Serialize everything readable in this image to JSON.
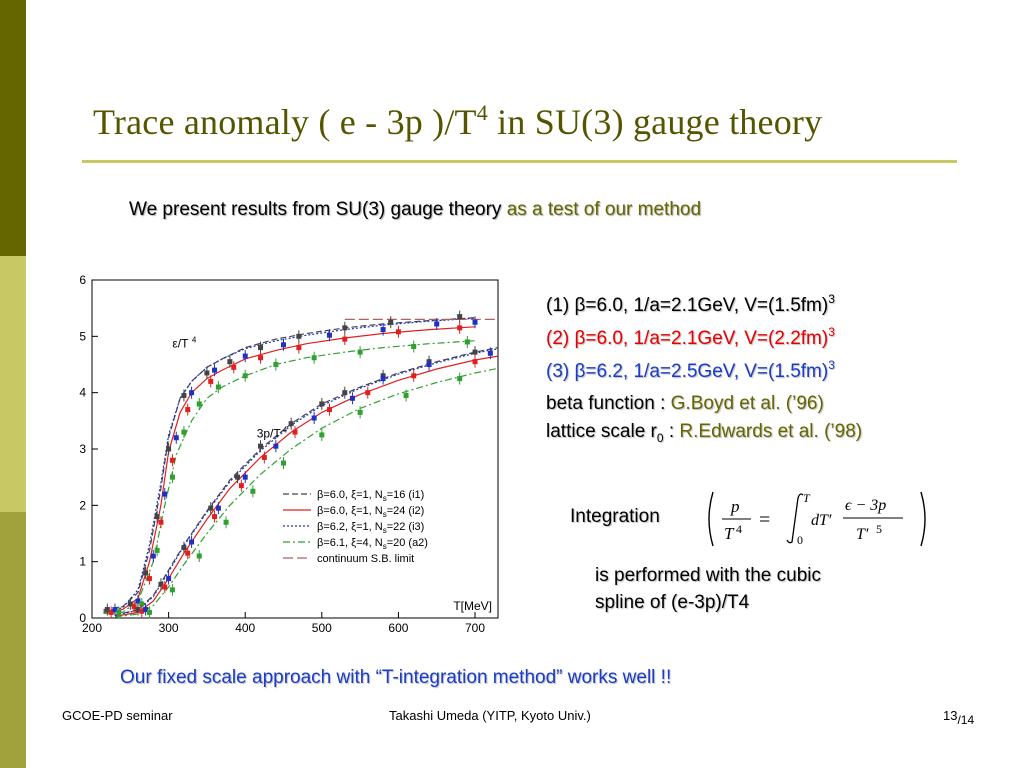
{
  "slide": {
    "title_main": "Trace anomaly ( e - 3p )/T",
    "title_sup": "4",
    "title_tail": " in SU(3) gauge theory",
    "subtitle_main": "We present results from SU(3) gauge theory ",
    "subtitle_accent": "as a test of our method",
    "params": [
      {
        "text": "(1) β=6.0, 1/a=2.1GeV, V=(1.5fm)",
        "sup": "3"
      },
      {
        "text": "(2) β=6.0, 1/a=2.1GeV, V=(2.2fm)",
        "sup": "3"
      },
      {
        "text": "(3) β=6.2, 1/a=2.5GeV, V=(1.5fm)",
        "sup": "3"
      }
    ],
    "beta_label": "beta function  : ",
    "beta_ref": "G.Boyd et al. (’96)",
    "lattice_label": "lattice scale r",
    "lattice_sub": "0",
    "lattice_colon": " : ",
    "lattice_ref": "R.Edwards et al. (’98)",
    "integration_label": "Integration",
    "integration_note_1": "is performed with the cubic",
    "integration_note_2": "spline of (e-3p)/T4",
    "conclusion": "Our fixed scale approach with “T-integration method” works well !!",
    "footer_left": "GCOE-PD seminar",
    "footer_center": "Takashi Umeda (YITP, Kyoto Univ.)",
    "page_number": "13",
    "page_total": "/14",
    "colors": {
      "olive_dark": "#666600",
      "olive_light": "#c8c865",
      "red": "#e80000",
      "blue": "#1a3cc8"
    }
  },
  "chart_data": {
    "type": "line",
    "xlabel": "T[MeV]",
    "ylabel": "",
    "xlim": [
      200,
      730
    ],
    "ylim": [
      0,
      6
    ],
    "xticks": [
      200,
      300,
      400,
      500,
      600,
      700
    ],
    "yticks": [
      0,
      1,
      2,
      3,
      4,
      5,
      6
    ],
    "grid": false,
    "legend_position": "bottom-right",
    "annotations": [
      {
        "text": "ε/T",
        "sup": "4",
        "x": 305,
        "y": 4.8
      },
      {
        "text": "3p/T",
        "sup": "4",
        "x": 415,
        "y": 3.2
      }
    ],
    "series": [
      {
        "name": "β=6.0, ξ=1, N",
        "sub": "s",
        "suffix": "=16 (i1)",
        "style": "dashed",
        "color": "#444444",
        "x": [
          215,
          240,
          260,
          275,
          290,
          300,
          315,
          330,
          350,
          370,
          400,
          440,
          480,
          530,
          580,
          640,
          700
        ],
        "y": [
          0.15,
          0.2,
          0.45,
          1.2,
          2.3,
          3.2,
          3.9,
          4.2,
          4.45,
          4.6,
          4.8,
          4.95,
          5.05,
          5.15,
          5.22,
          5.28,
          5.33
        ]
      },
      {
        "name": "β=6.0, ξ=1, N",
        "sub": "s",
        "suffix": "=24 (i2)",
        "style": "solid",
        "color": "#e02020",
        "x": [
          215,
          240,
          260,
          275,
          290,
          300,
          315,
          330,
          350,
          370,
          400,
          440,
          480,
          530,
          580,
          640,
          700
        ],
        "y": [
          0.1,
          0.15,
          0.35,
          1.0,
          2.0,
          2.95,
          3.65,
          4.0,
          4.25,
          4.4,
          4.6,
          4.75,
          4.87,
          4.97,
          5.05,
          5.12,
          5.17
        ]
      },
      {
        "name": "β=6.2, ξ=1, N",
        "sub": "s",
        "suffix": "=22 (i3)",
        "style": "dotted",
        "color": "#2030c0",
        "x": [
          215,
          240,
          260,
          275,
          290,
          300,
          315,
          330,
          350,
          370,
          400,
          440,
          480,
          530,
          580,
          640,
          700
        ],
        "y": [
          0.12,
          0.18,
          0.5,
          1.3,
          2.4,
          3.25,
          3.9,
          4.2,
          4.45,
          4.6,
          4.78,
          4.92,
          5.02,
          5.12,
          5.2,
          5.27,
          5.32
        ]
      },
      {
        "name": "β=6.1, ξ=4, N",
        "sub": "s",
        "suffix": "=20 (a2)",
        "style": "dashdot",
        "color": "#30a030",
        "x": [
          215,
          240,
          260,
          280,
          295,
          310,
          330,
          350,
          370,
          400,
          440,
          480,
          530,
          580,
          640,
          700
        ],
        "y": [
          0.08,
          0.1,
          0.3,
          1.0,
          2.0,
          2.9,
          3.5,
          3.9,
          4.1,
          4.3,
          4.5,
          4.62,
          4.72,
          4.8,
          4.87,
          4.92
        ]
      },
      {
        "name": "continuum S.B. limit",
        "sub": "",
        "suffix": "",
        "style": "longdash",
        "color": "#b06060",
        "x": [
          530,
          730
        ],
        "y": [
          5.3,
          5.3
        ]
      },
      {
        "name": "",
        "style": "dashed",
        "color": "#444444",
        "group": "3p",
        "x": [
          230,
          260,
          280,
          300,
          320,
          350,
          380,
          420,
          460,
          500,
          550,
          600,
          650,
          700,
          730
        ],
        "y": [
          0.05,
          0.15,
          0.4,
          0.85,
          1.3,
          1.9,
          2.45,
          3.0,
          3.45,
          3.8,
          4.1,
          4.35,
          4.55,
          4.72,
          4.8
        ]
      },
      {
        "name": "",
        "style": "solid",
        "color": "#e02020",
        "group": "3p",
        "x": [
          230,
          260,
          280,
          300,
          320,
          350,
          380,
          420,
          460,
          500,
          550,
          600,
          650,
          700,
          730
        ],
        "y": [
          0.03,
          0.1,
          0.3,
          0.7,
          1.15,
          1.75,
          2.3,
          2.85,
          3.3,
          3.65,
          3.97,
          4.22,
          4.42,
          4.58,
          4.65
        ]
      },
      {
        "name": "",
        "style": "dotted",
        "color": "#2030c0",
        "group": "3p",
        "x": [
          230,
          260,
          280,
          300,
          320,
          350,
          380,
          420,
          460,
          500,
          550,
          600,
          650,
          700,
          730
        ],
        "y": [
          0.04,
          0.14,
          0.38,
          0.82,
          1.28,
          1.88,
          2.42,
          2.97,
          3.42,
          3.77,
          4.08,
          4.33,
          4.53,
          4.7,
          4.78
        ]
      },
      {
        "name": "",
        "style": "dashdot",
        "color": "#30a030",
        "group": "3p",
        "x": [
          230,
          260,
          280,
          300,
          320,
          350,
          380,
          420,
          460,
          500,
          550,
          600,
          650,
          700,
          730
        ],
        "y": [
          0.02,
          0.07,
          0.22,
          0.55,
          0.95,
          1.5,
          2.0,
          2.55,
          3.0,
          3.37,
          3.72,
          3.98,
          4.18,
          4.35,
          4.43
        ]
      }
    ],
    "points": [
      {
        "color": "#444444",
        "x": [
          220,
          250,
          270,
          285,
          300,
          320,
          350,
          380,
          420,
          470,
          530,
          590,
          680
        ],
        "y": [
          0.15,
          0.25,
          0.8,
          1.8,
          3.0,
          3.95,
          4.35,
          4.55,
          4.8,
          5.0,
          5.15,
          5.25,
          5.35
        ]
      },
      {
        "color": "#e02020",
        "x": [
          225,
          255,
          275,
          290,
          305,
          325,
          355,
          385,
          420,
          470,
          530,
          600,
          680
        ],
        "y": [
          0.1,
          0.2,
          0.7,
          1.7,
          2.8,
          3.7,
          4.2,
          4.45,
          4.62,
          4.8,
          4.95,
          5.08,
          5.15
        ]
      },
      {
        "color": "#2030c0",
        "x": [
          230,
          260,
          280,
          295,
          310,
          330,
          360,
          400,
          450,
          510,
          580,
          650,
          700
        ],
        "y": [
          0.15,
          0.3,
          1.1,
          2.2,
          3.2,
          4.0,
          4.4,
          4.65,
          4.85,
          5.02,
          5.12,
          5.22,
          5.25
        ]
      },
      {
        "color": "#30a030",
        "x": [
          235,
          265,
          285,
          305,
          320,
          340,
          365,
          400,
          440,
          490,
          550,
          620,
          690
        ],
        "y": [
          0.1,
          0.25,
          1.2,
          2.5,
          3.3,
          3.8,
          4.1,
          4.3,
          4.5,
          4.62,
          4.72,
          4.82,
          4.9
        ]
      },
      {
        "color": "#444444",
        "x": [
          260,
          290,
          320,
          355,
          390,
          420,
          460,
          500,
          530,
          580,
          640,
          700
        ],
        "y": [
          0.15,
          0.6,
          1.25,
          1.95,
          2.5,
          3.05,
          3.45,
          3.8,
          4.0,
          4.3,
          4.55,
          4.72
        ]
      },
      {
        "color": "#e02020",
        "x": [
          265,
          295,
          325,
          360,
          395,
          425,
          465,
          510,
          560,
          620,
          700
        ],
        "y": [
          0.12,
          0.55,
          1.15,
          1.8,
          2.35,
          2.85,
          3.3,
          3.7,
          4.0,
          4.3,
          4.55
        ]
      },
      {
        "color": "#2030c0",
        "x": [
          270,
          300,
          330,
          365,
          400,
          440,
          490,
          540,
          580,
          640,
          720
        ],
        "y": [
          0.15,
          0.7,
          1.35,
          1.95,
          2.5,
          3.05,
          3.55,
          3.9,
          4.25,
          4.5,
          4.7
        ]
      },
      {
        "color": "#30a030",
        "x": [
          275,
          305,
          340,
          375,
          410,
          450,
          500,
          550,
          610,
          680
        ],
        "y": [
          0.1,
          0.5,
          1.1,
          1.7,
          2.25,
          2.75,
          3.25,
          3.65,
          3.95,
          4.25
        ]
      }
    ]
  }
}
